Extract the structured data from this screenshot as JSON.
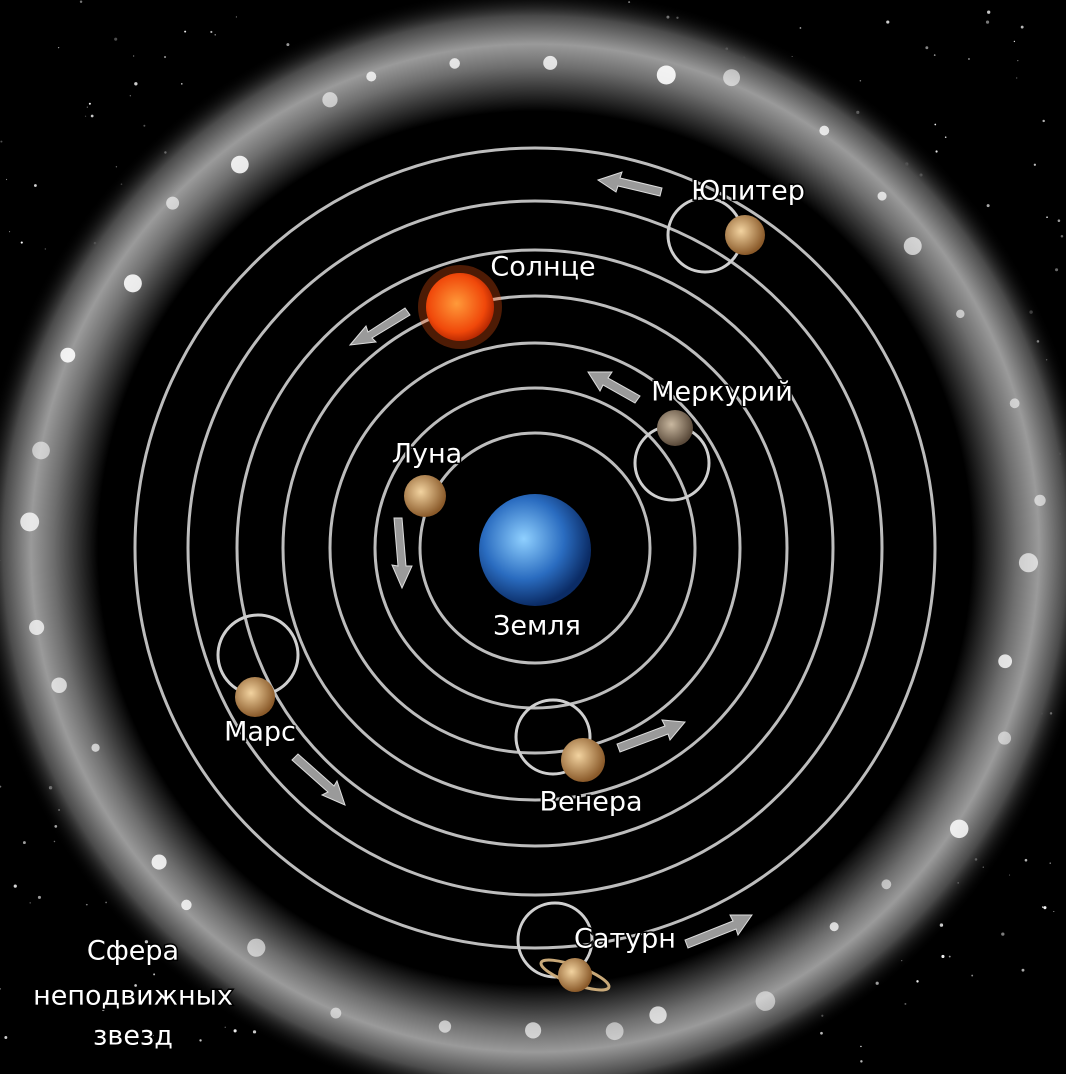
{
  "labels": {
    "jupiter": "Юпитер",
    "sun": "Солнце",
    "mercury": "Меркурий",
    "moon": "Луна",
    "earth": "Земля",
    "mars": "Марс",
    "venus": "Венера",
    "saturn": "Сатурн"
  },
  "sphere": {
    "lines": [
      "Сфера",
      "неподвижных",
      "звезд"
    ]
  }
}
